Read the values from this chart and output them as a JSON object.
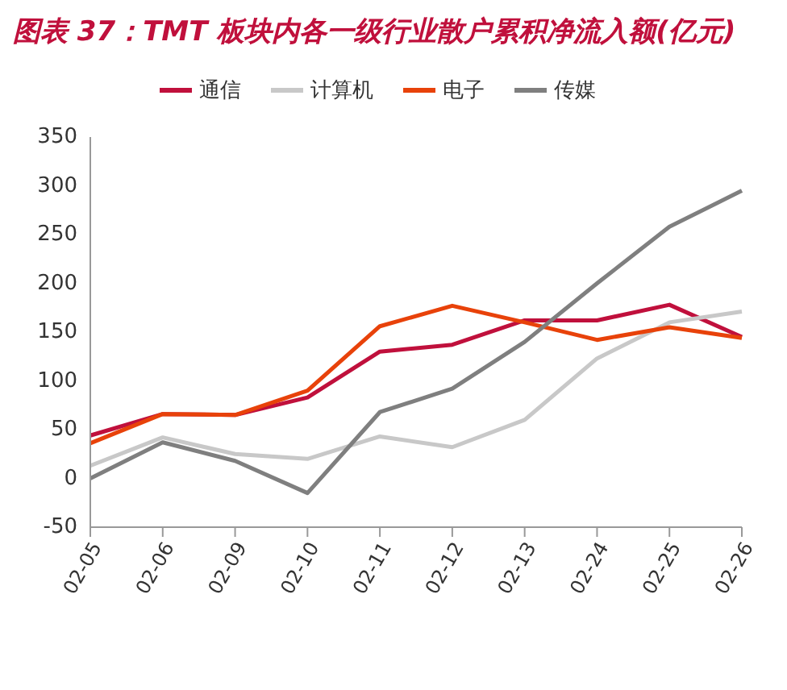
{
  "chart_data": {
    "type": "line",
    "title": "图表 37：TMT 板块内各一级行业散户累积净流入额(亿元)",
    "categories": [
      "02-05",
      "02-06",
      "02-09",
      "02-10",
      "02-11",
      "02-12",
      "02-13",
      "02-24",
      "02-25",
      "02-26"
    ],
    "series": [
      {
        "name": "通信",
        "color": "#c0103c",
        "values": [
          44,
          66,
          65,
          83,
          130,
          137,
          162,
          162,
          178,
          145
        ]
      },
      {
        "name": "计算机",
        "color": "#c8c8c8",
        "values": [
          13,
          42,
          25,
          20,
          43,
          32,
          60,
          123,
          160,
          171
        ]
      },
      {
        "name": "电子",
        "color": "#e8420a",
        "values": [
          36,
          66,
          65,
          90,
          156,
          177,
          160,
          142,
          155,
          144
        ]
      },
      {
        "name": "传媒",
        "color": "#7f7f7f",
        "values": [
          0,
          37,
          18,
          -15,
          68,
          92,
          140,
          200,
          258,
          295
        ]
      }
    ],
    "ylim": [
      -50,
      350
    ],
    "yticks": [
      -50,
      0,
      50,
      100,
      150,
      200,
      250,
      300,
      350
    ],
    "grid": false,
    "legend": "top",
    "marker": "none",
    "line_style": "solid"
  }
}
